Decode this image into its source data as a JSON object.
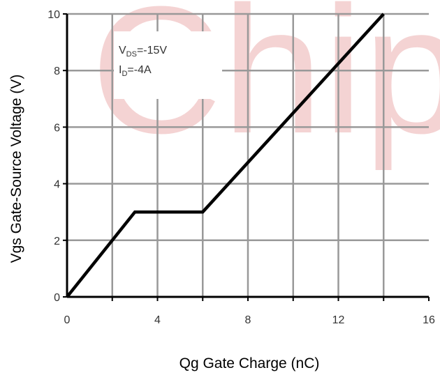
{
  "chart_data": {
    "type": "line",
    "xlabel": "Qg Gate Charge (nC)",
    "ylabel": "Vgs Gate-Source Voltage (V)",
    "xlim": [
      0,
      16
    ],
    "ylim": [
      0,
      10
    ],
    "x_ticks": [
      "0",
      "4",
      "8",
      "12",
      "16"
    ],
    "y_ticks": [
      "0",
      "2",
      "4",
      "6",
      "8",
      "10"
    ],
    "grid": true,
    "series": [
      {
        "x": [
          0,
          3,
          6,
          14
        ],
        "y": [
          0,
          3,
          3,
          10
        ]
      }
    ],
    "annotations": {
      "line1": {
        "main": "V",
        "sub": "DS",
        "rest": "=-15V"
      },
      "line2": {
        "main": "I",
        "sub": "D",
        "rest": "=-4A"
      }
    },
    "watermark": "Chip"
  },
  "colors": {
    "line": "#000000",
    "grid": "#999999",
    "watermark": "#e8a0a0"
  }
}
